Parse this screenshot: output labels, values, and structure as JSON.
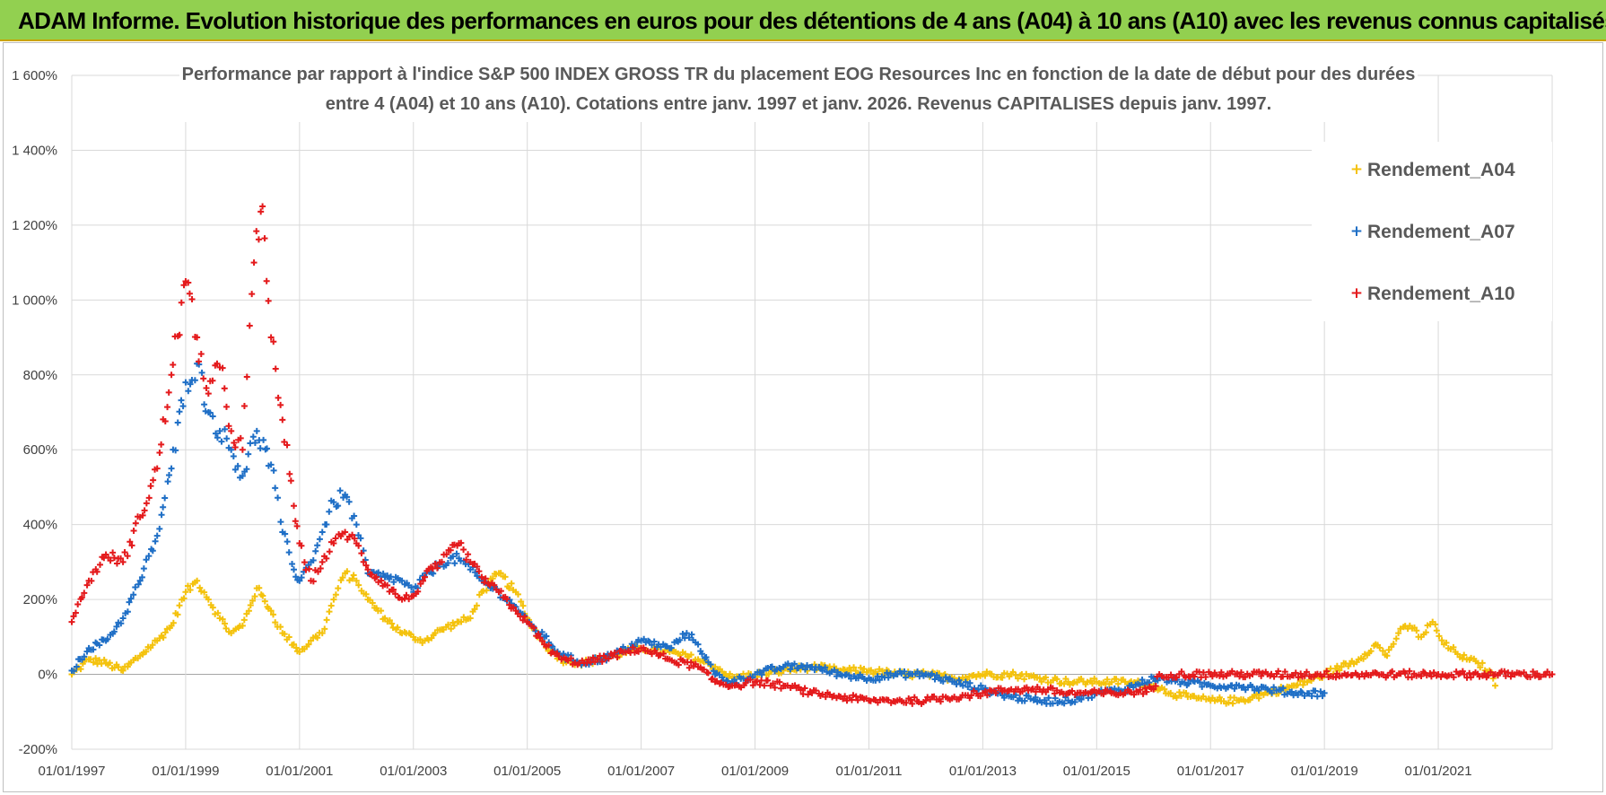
{
  "header": {
    "title": "ADAM Informe. Evolution historique des performances en euros pour des détentions de 4 ans (A04) à 10 ans (A10) avec les revenus connus capitalisés"
  },
  "chart_data": {
    "type": "scatter",
    "title_line1": "Performance par rapport à l'indice S&P 500 INDEX GROSS TR  du placement EOG Resources Inc en fonction de la date de début pour des durées",
    "title_line2": "entre 4 (A04) et 10 ans (A10).  Cotations entre janv. 1997 et janv. 2026. Revenus CAPITALISES depuis janv. 1997.",
    "xlabel": "",
    "ylabel": "",
    "xlim": [
      1997.0,
      2023.0
    ],
    "ylim": [
      -200,
      1600
    ],
    "y_ticks": [
      "-200%",
      "0%",
      "200%",
      "400%",
      "600%",
      "800%",
      "1 000%",
      "1 200%",
      "1 400%",
      "1 600%"
    ],
    "x_ticks": [
      "01/01/1997",
      "01/01/1999",
      "01/01/2001",
      "01/01/2003",
      "01/01/2005",
      "01/01/2007",
      "01/01/2009",
      "01/01/2011",
      "01/01/2013",
      "01/01/2015",
      "01/01/2017",
      "01/01/2019",
      "01/01/2021"
    ],
    "grid": true,
    "legend_position": "top-right",
    "series": [
      {
        "name": "Rendement_A04",
        "color": "#f4c20d",
        "x": [
          1997.0,
          1997.3,
          1997.6,
          1997.9,
          1998.2,
          1998.5,
          1998.75,
          1999.0,
          1999.2,
          1999.4,
          1999.6,
          1999.8,
          2000.0,
          2000.25,
          2000.5,
          2000.7,
          2000.9,
          2001.0,
          2001.2,
          2001.4,
          2001.6,
          2001.8,
          2002.0,
          2002.2,
          2002.5,
          2002.8,
          2003.0,
          2003.2,
          2003.5,
          2003.8,
          2004.0,
          2004.2,
          2004.5,
          2004.8,
          2005.0,
          2005.3,
          2005.6,
          2006.0,
          2006.5,
          2007.0,
          2007.5,
          2008.0,
          2008.3,
          2008.6,
          2009.0,
          2009.5,
          2010.0,
          2010.5,
          2011.0,
          2011.5,
          2012.0,
          2012.5,
          2013.0,
          2013.5,
          2014.0,
          2014.5,
          2015.0,
          2015.5,
          2016.0,
          2016.3,
          2016.6,
          2017.0,
          2017.5,
          2018.0,
          2018.5,
          2019.0,
          2019.3,
          2019.6,
          2019.9,
          2020.1,
          2020.3,
          2020.5,
          2020.7,
          2020.9,
          2021.1,
          2021.3,
          2021.5,
          2021.7,
          2021.9,
          2022.0
        ],
        "y": [
          0,
          40,
          30,
          10,
          50,
          90,
          130,
          220,
          250,
          200,
          150,
          110,
          130,
          230,
          170,
          110,
          80,
          60,
          90,
          110,
          200,
          270,
          250,
          200,
          150,
          110,
          100,
          90,
          120,
          140,
          150,
          220,
          270,
          220,
          150,
          80,
          40,
          30,
          50,
          70,
          60,
          40,
          20,
          -10,
          0,
          10,
          20,
          10,
          10,
          0,
          0,
          -10,
          0,
          0,
          -10,
          -20,
          -20,
          -20,
          -30,
          -50,
          -60,
          -70,
          -70,
          -50,
          -30,
          0,
          20,
          40,
          80,
          50,
          110,
          130,
          100,
          140,
          80,
          60,
          40,
          30,
          10,
          -30
        ]
      },
      {
        "name": "Rendement_A07",
        "color": "#1f6fc6",
        "x": [
          1997.0,
          1997.3,
          1997.6,
          1997.9,
          1998.2,
          1998.5,
          1998.75,
          1999.0,
          1999.2,
          1999.4,
          1999.6,
          1999.8,
          2000.0,
          2000.25,
          2000.5,
          2000.7,
          2000.9,
          2001.0,
          2001.2,
          2001.4,
          2001.6,
          2001.8,
          2002.0,
          2002.2,
          2002.5,
          2002.8,
          2003.0,
          2003.2,
          2003.5,
          2003.8,
          2004.0,
          2004.2,
          2004.5,
          2004.8,
          2005.0,
          2005.3,
          2005.6,
          2006.0,
          2006.5,
          2007.0,
          2007.5,
          2007.8,
          2008.0,
          2008.3,
          2008.6,
          2009.0,
          2009.5,
          2010.0,
          2010.5,
          2011.0,
          2011.5,
          2012.0,
          2012.5,
          2013.0,
          2013.5,
          2014.0,
          2014.5,
          2015.0,
          2015.5,
          2016.0,
          2016.5,
          2017.0,
          2017.5,
          2018.0,
          2018.5,
          2019.0
        ],
        "y": [
          10,
          70,
          90,
          150,
          250,
          370,
          550,
          780,
          830,
          700,
          650,
          600,
          530,
          650,
          560,
          380,
          280,
          250,
          300,
          380,
          460,
          480,
          400,
          270,
          260,
          250,
          220,
          260,
          300,
          310,
          280,
          250,
          220,
          180,
          140,
          100,
          50,
          30,
          50,
          90,
          70,
          110,
          80,
          0,
          -20,
          0,
          20,
          20,
          0,
          -10,
          0,
          0,
          -20,
          -40,
          -60,
          -70,
          -70,
          -50,
          -40,
          -10,
          -20,
          -30,
          -30,
          -40,
          -50,
          -50
        ]
      },
      {
        "name": "Rendement_A10",
        "color": "#e41a1c",
        "x": [
          1997.0,
          1997.3,
          1997.6,
          1997.9,
          1998.2,
          1998.5,
          1998.75,
          1999.0,
          1999.2,
          1999.4,
          1999.6,
          1999.8,
          2000.0,
          2000.2,
          2000.35,
          2000.5,
          2000.7,
          2000.9,
          2001.0,
          2001.2,
          2001.4,
          2001.6,
          2001.8,
          2002.0,
          2002.2,
          2002.5,
          2002.8,
          2003.0,
          2003.2,
          2003.5,
          2003.8,
          2004.0,
          2004.2,
          2004.5,
          2004.8,
          2005.0,
          2005.3,
          2005.6,
          2006.0,
          2006.5,
          2007.0,
          2007.5,
          2008.0,
          2008.3,
          2008.6,
          2009.0,
          2009.5,
          2010.0,
          2010.5,
          2011.0,
          2011.5,
          2012.0,
          2012.5,
          2013.0,
          2013.5,
          2014.0,
          2014.5,
          2015.0,
          2015.5,
          2016.0,
          2016.1,
          2017.0,
          2018.0,
          2019.0,
          2020.0,
          2021.0,
          2022.0,
          2023.0
        ],
        "y": [
          140,
          250,
          320,
          300,
          420,
          550,
          800,
          1050,
          900,
          750,
          820,
          650,
          600,
          1100,
          1250,
          900,
          680,
          450,
          350,
          250,
          300,
          350,
          380,
          350,
          280,
          240,
          200,
          210,
          260,
          300,
          350,
          300,
          260,
          220,
          170,
          140,
          80,
          40,
          30,
          50,
          70,
          40,
          20,
          -20,
          -30,
          -20,
          -30,
          -50,
          -60,
          -70,
          -70,
          -70,
          -60,
          -50,
          -40,
          -40,
          -50,
          -50,
          -50,
          -40,
          0,
          0,
          0,
          0,
          0,
          0,
          0,
          0
        ]
      }
    ]
  }
}
